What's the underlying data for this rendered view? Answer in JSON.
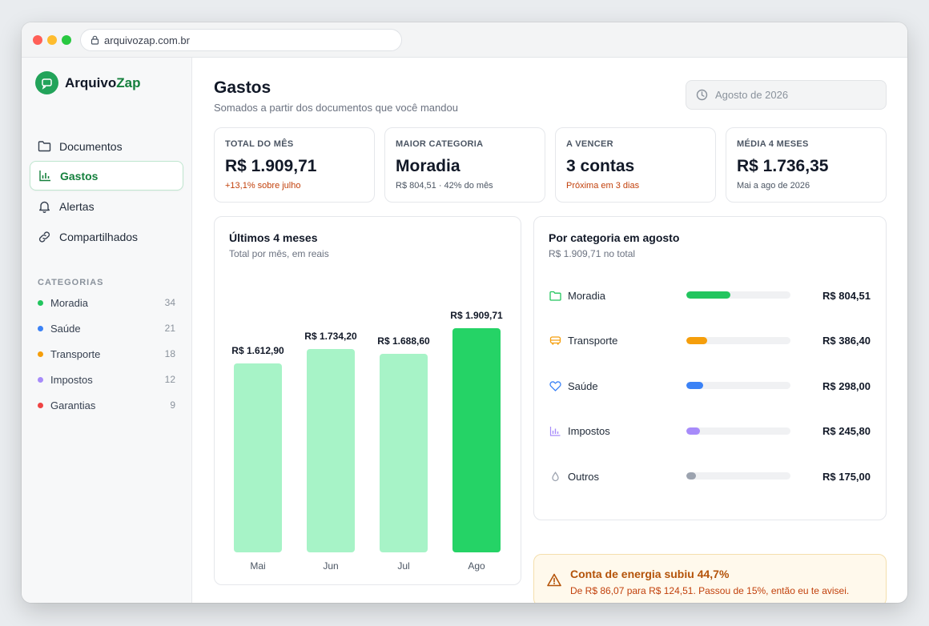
{
  "browser": {
    "url": "arquivozap.com.br"
  },
  "brand": {
    "name_main": "Arquivo",
    "name_accent": "Zap"
  },
  "nav": [
    {
      "label": "Documentos",
      "icon": "folder-icon",
      "active": false
    },
    {
      "label": "Gastos",
      "icon": "bar-chart-icon",
      "active": true
    },
    {
      "label": "Alertas",
      "icon": "bell-icon",
      "active": false
    },
    {
      "label": "Compartilhados",
      "icon": "link-icon",
      "active": false
    }
  ],
  "categories": {
    "heading": "CATEGORIAS",
    "items": [
      {
        "label": "Moradia",
        "count": "34",
        "color": "#22c55e"
      },
      {
        "label": "Saúde",
        "count": "21",
        "color": "#3b82f6"
      },
      {
        "label": "Transporte",
        "count": "18",
        "color": "#f59e0b"
      },
      {
        "label": "Impostos",
        "count": "12",
        "color": "#a78bfa"
      },
      {
        "label": "Garantias",
        "count": "9",
        "color": "#ef4444"
      }
    ]
  },
  "header": {
    "title": "Gastos",
    "subtitle": "Somados a partir dos documentos que você mandou",
    "date_filter": "Agosto de 2026"
  },
  "kpis": [
    {
      "label": "TOTAL DO MÊS",
      "value": "R$ 1.909,71",
      "sub": "+13,1% sobre julho",
      "sub_warn": true
    },
    {
      "label": "MAIOR CATEGORIA",
      "value": "Moradia",
      "sub": "R$ 804,51 · 42% do mês",
      "sub_warn": false
    },
    {
      "label": "A VENCER",
      "value": "3 contas",
      "sub": "Próxima em 3 dias",
      "sub_warn": true
    },
    {
      "label": "MÉDIA 4 MESES",
      "value": "R$ 1.736,35",
      "sub": "Mai a ago de 2026",
      "sub_warn": false
    }
  ],
  "monthly": {
    "title": "Últimos 4 meses",
    "subtitle": "Total por mês, em reais"
  },
  "chart_data": {
    "type": "bar",
    "categories": [
      "Mai",
      "Jun",
      "Jul",
      "Ago"
    ],
    "values": [
      1612.9,
      1734.2,
      1688.6,
      1909.71
    ],
    "labels": [
      "R$ 1.612,90",
      "R$ 1.734,20",
      "R$ 1.688,60",
      "R$ 1.909,71"
    ],
    "highlight_index": 3,
    "colors": {
      "normal": "#a7f3c7",
      "highlight": "#25d366"
    },
    "title": "Últimos 4 meses",
    "subtitle": "Total por mês, em reais"
  },
  "by_category": {
    "title": "Por categoria em agosto",
    "subtitle": "R$ 1.909,71 no total",
    "rows": [
      {
        "label": "Moradia",
        "amount": "R$ 804,51",
        "value": 804.51,
        "color": "#22c55e",
        "icon": "folder-icon"
      },
      {
        "label": "Transporte",
        "amount": "R$ 386,40",
        "value": 386.4,
        "color": "#f59e0b",
        "icon": "bus-icon"
      },
      {
        "label": "Saúde",
        "amount": "R$ 298,00",
        "value": 298.0,
        "color": "#3b82f6",
        "icon": "heart-icon"
      },
      {
        "label": "Impostos",
        "amount": "R$ 245,80",
        "value": 245.8,
        "color": "#a78bfa",
        "icon": "bar-chart-icon"
      },
      {
        "label": "Outros",
        "amount": "R$ 175,00",
        "value": 175.0,
        "color": "#9ca3af",
        "icon": "drop-icon"
      }
    ]
  },
  "alert": {
    "title": "Conta de energia subiu 44,7%",
    "text": "De R$ 86,07 para R$ 124,51. Passou de 15%, então eu te avisei."
  }
}
